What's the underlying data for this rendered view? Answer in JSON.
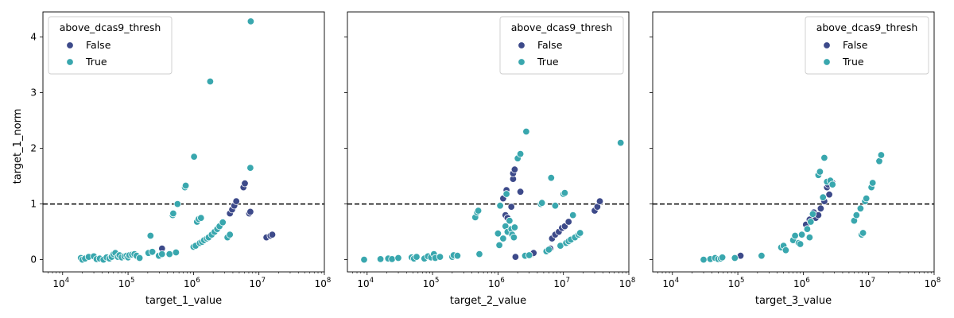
{
  "figure": {
    "sharey_label": "target_1_norm",
    "ytick_labels": [
      "0",
      "1",
      "2",
      "3",
      "4"
    ],
    "xtick_labels": [
      "10",
      "10",
      "10",
      "10",
      "10"
    ],
    "xtick_exponents": [
      "4",
      "5",
      "6",
      "7",
      "8"
    ],
    "legend_title": "above_dcas9_thresh",
    "legend_entries": [
      "False",
      "True"
    ]
  },
  "colors": {
    "false": "#3d4a8a",
    "true": "#39a7ae",
    "threshold": "#000000",
    "axes": "#000000"
  },
  "chart_data": [
    {
      "type": "scatter",
      "xlabel": "target_1_value",
      "ylabel": "target_1_norm",
      "xscale": "log",
      "xlim": [
        5000,
        100000000
      ],
      "ylim": [
        -0.22,
        4.45
      ],
      "threshold_y": 1.0,
      "legend": {
        "title": "above_dcas9_thresh",
        "placement": "top-left",
        "entries": [
          "False",
          "True"
        ]
      },
      "series": [
        {
          "name": "False",
          "points": [
            [
              330000,
              0.2
            ],
            [
              3600000,
              0.83
            ],
            [
              3900000,
              0.9
            ],
            [
              4200000,
              0.97
            ],
            [
              4500000,
              1.05
            ],
            [
              5800000,
              1.3
            ],
            [
              6100000,
              1.37
            ],
            [
              7100000,
              0.83
            ],
            [
              7400000,
              0.86
            ],
            [
              13000000,
              0.4
            ],
            [
              15000000,
              0.43
            ],
            [
              16000000,
              0.45
            ]
          ]
        },
        {
          "name": "True",
          "points": [
            [
              19000,
              0.03
            ],
            [
              20000,
              0.0
            ],
            [
              22000,
              0.02
            ],
            [
              25000,
              0.05
            ],
            [
              30000,
              0.06
            ],
            [
              33000,
              0.01
            ],
            [
              37000,
              0.02
            ],
            [
              42000,
              0.0
            ],
            [
              47000,
              0.04
            ],
            [
              52000,
              0.02
            ],
            [
              56000,
              0.05
            ],
            [
              60000,
              0.1
            ],
            [
              64000,
              0.12
            ],
            [
              70000,
              0.05
            ],
            [
              74000,
              0.08
            ],
            [
              80000,
              0.04
            ],
            [
              88000,
              0.06
            ],
            [
              95000,
              0.07
            ],
            [
              100000,
              0.04
            ],
            [
              105000,
              0.08
            ],
            [
              115000,
              0.09
            ],
            [
              125000,
              0.1
            ],
            [
              135000,
              0.07
            ],
            [
              150000,
              0.03
            ],
            [
              205000,
              0.12
            ],
            [
              220000,
              0.43
            ],
            [
              235000,
              0.14
            ],
            [
              295000,
              0.07
            ],
            [
              330000,
              0.1
            ],
            [
              430000,
              0.1
            ],
            [
              480000,
              0.8
            ],
            [
              490000,
              0.83
            ],
            [
              540000,
              0.13
            ],
            [
              570000,
              1.0
            ],
            [
              740000,
              1.3
            ],
            [
              760000,
              1.33
            ],
            [
              1000000,
              0.23
            ],
            [
              1020000,
              1.85
            ],
            [
              1080000,
              0.25
            ],
            [
              1130000,
              0.68
            ],
            [
              1200000,
              0.73
            ],
            [
              1250000,
              0.3
            ],
            [
              1300000,
              0.75
            ],
            [
              1350000,
              0.32
            ],
            [
              1450000,
              0.35
            ],
            [
              1600000,
              0.38
            ],
            [
              1700000,
              0.4
            ],
            [
              1800000,
              3.2
            ],
            [
              1900000,
              0.45
            ],
            [
              2100000,
              0.5
            ],
            [
              2300000,
              0.55
            ],
            [
              2500000,
              0.6
            ],
            [
              2800000,
              0.67
            ],
            [
              3300000,
              0.4
            ],
            [
              3600000,
              0.45
            ],
            [
              7400000,
              1.65
            ],
            [
              7500000,
              4.28
            ]
          ]
        }
      ]
    },
    {
      "type": "scatter",
      "xlabel": "target_2_value",
      "xscale": "log",
      "xlim": [
        5000,
        100000000
      ],
      "ylim": [
        -0.22,
        4.45
      ],
      "threshold_y": 1.0,
      "legend": {
        "title": "above_dcas9_thresh",
        "placement": "top-right",
        "entries": [
          "False",
          "True"
        ]
      },
      "series": [
        {
          "name": "False",
          "points": [
            [
              1200000,
              1.1
            ],
            [
              1300000,
              0.8
            ],
            [
              1350000,
              1.25
            ],
            [
              1400000,
              0.75
            ],
            [
              1600000,
              0.95
            ],
            [
              1700000,
              1.45
            ],
            [
              1700000,
              1.55
            ],
            [
              1800000,
              1.62
            ],
            [
              1850000,
              0.05
            ],
            [
              2200000,
              1.22
            ],
            [
              3300000,
              0.1
            ],
            [
              3500000,
              0.12
            ],
            [
              6300000,
              0.2
            ],
            [
              6700000,
              0.38
            ],
            [
              7500000,
              0.45
            ],
            [
              8500000,
              0.5
            ],
            [
              9500000,
              0.57
            ],
            [
              10500000,
              0.6
            ],
            [
              12000000,
              0.68
            ],
            [
              14000000,
              0.8
            ],
            [
              30000000,
              0.88
            ],
            [
              33000000,
              0.95
            ],
            [
              36000000,
              1.05
            ]
          ]
        },
        {
          "name": "True",
          "points": [
            [
              9000,
              0.0
            ],
            [
              16000,
              0.01
            ],
            [
              21000,
              0.02
            ],
            [
              24000,
              0.01
            ],
            [
              30000,
              0.03
            ],
            [
              48000,
              0.04
            ],
            [
              52000,
              0.02
            ],
            [
              57000,
              0.05
            ],
            [
              75000,
              0.02
            ],
            [
              85000,
              0.06
            ],
            [
              95000,
              0.04
            ],
            [
              105000,
              0.1
            ],
            [
              110000,
              0.03
            ],
            [
              130000,
              0.05
            ],
            [
              200000,
              0.05
            ],
            [
              210000,
              0.08
            ],
            [
              240000,
              0.07
            ],
            [
              450000,
              0.76
            ],
            [
              480000,
              0.85
            ],
            [
              500000,
              0.88
            ],
            [
              520000,
              0.1
            ],
            [
              1000000,
              0.47
            ],
            [
              1050000,
              0.26
            ],
            [
              1080000,
              0.97
            ],
            [
              1200000,
              0.38
            ],
            [
              1300000,
              0.6
            ],
            [
              1350000,
              1.18
            ],
            [
              1400000,
              0.5
            ],
            [
              1500000,
              0.7
            ],
            [
              1600000,
              0.55
            ],
            [
              1650000,
              0.45
            ],
            [
              1750000,
              0.4
            ],
            [
              1800000,
              0.58
            ],
            [
              2000000,
              1.82
            ],
            [
              2200000,
              1.9
            ],
            [
              2600000,
              0.07
            ],
            [
              2700000,
              2.3
            ],
            [
              3000000,
              0.08
            ],
            [
              4500000,
              1.0
            ],
            [
              4700000,
              1.02
            ],
            [
              5500000,
              0.15
            ],
            [
              6000000,
              0.18
            ],
            [
              6500000,
              1.47
            ],
            [
              7500000,
              0.97
            ],
            [
              9000000,
              0.25
            ],
            [
              10000000,
              1.18
            ],
            [
              10500000,
              1.2
            ],
            [
              11000000,
              0.3
            ],
            [
              12000000,
              0.33
            ],
            [
              13000000,
              0.36
            ],
            [
              14000000,
              0.8
            ],
            [
              15000000,
              0.4
            ],
            [
              17000000,
              0.45
            ],
            [
              18000000,
              0.48
            ],
            [
              75000000,
              2.1
            ]
          ]
        }
      ]
    },
    {
      "type": "scatter",
      "xlabel": "target_3_value",
      "xscale": "log",
      "xlim": [
        5000,
        100000000
      ],
      "ylim": [
        -0.22,
        4.45
      ],
      "threshold_y": 1.0,
      "legend": {
        "title": "above_dcas9_thresh",
        "placement": "top-right",
        "entries": [
          "False",
          "True"
        ]
      },
      "series": [
        {
          "name": "False",
          "points": [
            [
              110000,
              0.07
            ],
            [
              1100000,
              0.63
            ],
            [
              1250000,
              0.72
            ],
            [
              1450000,
              0.85
            ],
            [
              1550000,
              0.75
            ],
            [
              1700000,
              0.8
            ],
            [
              1850000,
              0.92
            ],
            [
              2000000,
              1.1
            ],
            [
              2100000,
              1.05
            ],
            [
              2300000,
              1.3
            ],
            [
              2400000,
              1.35
            ],
            [
              2500000,
              1.17
            ],
            [
              2800000,
              1.38
            ]
          ]
        },
        {
          "name": "True",
          "points": [
            [
              30000,
              0.0
            ],
            [
              38000,
              0.01
            ],
            [
              45000,
              0.03
            ],
            [
              50000,
              0.01
            ],
            [
              55000,
              0.02
            ],
            [
              58000,
              0.04
            ],
            [
              90000,
              0.03
            ],
            [
              230000,
              0.07
            ],
            [
              460000,
              0.22
            ],
            [
              500000,
              0.25
            ],
            [
              540000,
              0.17
            ],
            [
              700000,
              0.35
            ],
            [
              750000,
              0.43
            ],
            [
              850000,
              0.3
            ],
            [
              900000,
              0.28
            ],
            [
              950000,
              0.45
            ],
            [
              1150000,
              0.55
            ],
            [
              1250000,
              0.4
            ],
            [
              1300000,
              0.68
            ],
            [
              1400000,
              0.82
            ],
            [
              1700000,
              1.52
            ],
            [
              1800000,
              1.58
            ],
            [
              2000000,
              1.12
            ],
            [
              2100000,
              1.83
            ],
            [
              2300000,
              1.4
            ],
            [
              2600000,
              1.42
            ],
            [
              2800000,
              1.35
            ],
            [
              6000000,
              0.7
            ],
            [
              6500000,
              0.8
            ],
            [
              7500000,
              0.92
            ],
            [
              7800000,
              0.45
            ],
            [
              8200000,
              0.48
            ],
            [
              8800000,
              1.05
            ],
            [
              9200000,
              1.1
            ],
            [
              11000000,
              1.3
            ],
            [
              11500000,
              1.38
            ],
            [
              14500000,
              1.77
            ],
            [
              15500000,
              1.88
            ]
          ]
        }
      ]
    }
  ]
}
